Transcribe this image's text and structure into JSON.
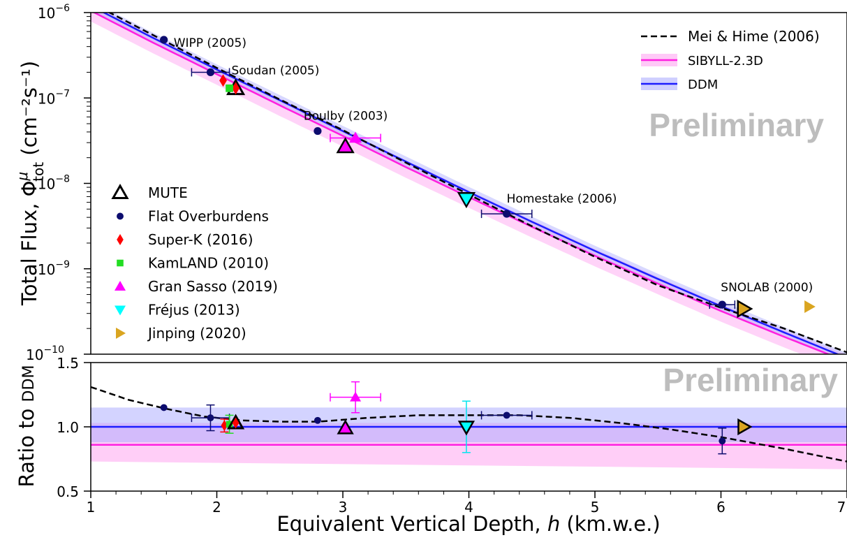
{
  "chart_data": [
    {
      "type": "scatter",
      "panel": "main",
      "ylabel": "Total Flux, Φ",
      "ylabel_sup": "μ",
      "ylabel_sub": "tot",
      "ylabel_units": "(cm⁻²s⁻¹)",
      "y_scale": "log",
      "ylim": [
        1e-10,
        1e-06
      ],
      "xlim": [
        1,
        7
      ],
      "y_ticks": [
        {
          "base": "10",
          "exp": "−6",
          "value": 1e-06
        },
        {
          "base": "10",
          "exp": "−7",
          "value": 1e-07
        },
        {
          "base": "10",
          "exp": "−8",
          "value": 1e-08
        },
        {
          "base": "10",
          "exp": "−9",
          "value": 1e-09
        },
        {
          "base": "10",
          "exp": "−10",
          "value": 1e-10
        }
      ],
      "watermark": "Preliminary",
      "legend_placement": "top-right",
      "lines": [
        {
          "name": "Mei & Hime (2006)",
          "color": "#000000",
          "style": "dashed",
          "x": [
            1.0,
            1.5,
            2.0,
            2.5,
            3.0,
            3.5,
            4.0,
            4.5,
            5.0,
            5.5,
            6.0,
            6.5,
            7.0
          ],
          "y": [
            1.3e-06,
            5.4e-07,
            2.25e-07,
            9.6e-08,
            4.2e-08,
            1.75e-08,
            7.4e-09,
            3.15e-09,
            1.38e-09,
            6.4e-10,
            3.5e-10,
            2e-10,
            1.05e-10
          ]
        },
        {
          "name": "SIBYLL-2.3D",
          "color": "#ff1fe0",
          "style": "solid",
          "band_color": "#ff9df0",
          "x": [
            1.0,
            1.5,
            2.0,
            2.5,
            3.0,
            3.5,
            4.0,
            4.5,
            5.0,
            5.5,
            6.0,
            6.5,
            7.0
          ],
          "y": [
            1.05e-06,
            4.4e-07,
            1.9e-07,
            8.2e-08,
            3.6e-08,
            1.55e-08,
            6.9e-09,
            3.1e-09,
            1.42e-09,
            6.7e-10,
            3.2e-10,
            1.6e-10,
            8.2e-11
          ],
          "band_factor_lo": 0.75,
          "band_factor_hi": 1.2
        },
        {
          "name": "DDM",
          "color": "#1d1dff",
          "style": "solid",
          "band_color": "#a8a8ff",
          "x": [
            1.0,
            1.5,
            2.0,
            2.5,
            3.0,
            3.5,
            4.0,
            4.5,
            5.0,
            5.5,
            6.0,
            6.5,
            7.0
          ],
          "y": [
            1.2e-06,
            5e-07,
            2.15e-07,
            9.4e-08,
            4.1e-08,
            1.8e-08,
            7.9e-09,
            3.55e-09,
            1.62e-09,
            7.6e-10,
            3.65e-10,
            1.8e-10,
            9e-11
          ],
          "band_factor_lo": 0.88,
          "band_factor_hi": 1.15
        }
      ],
      "points": [
        {
          "label": "WIPP (2005)",
          "x": 1.58,
          "y": 4.8e-07,
          "marker": "circle",
          "color": "#0c0c6e",
          "group": "Flat Overburdens"
        },
        {
          "label": "Soudan (2005)",
          "x": 1.95,
          "y": 2e-07,
          "xerr": 0.15,
          "marker": "circle",
          "color": "#0c0c6e",
          "group": "Flat Overburdens"
        },
        {
          "label": "Boulby (2003)",
          "x": 2.8,
          "y": 4.1e-08,
          "marker": "circle",
          "color": "#0c0c6e",
          "group": "Flat Overburdens"
        },
        {
          "label": "Homestake (2006)",
          "x": 4.3,
          "y": 4.4e-09,
          "xerr": 0.2,
          "marker": "circle",
          "color": "#0c0c6e",
          "group": "Flat Overburdens"
        },
        {
          "label": "SNOLAB (2000)",
          "x": 6.01,
          "y": 3.8e-10,
          "xerr": 0.1,
          "marker": "circle",
          "color": "#0c0c6e",
          "group": "Flat Overburdens"
        },
        {
          "label": "",
          "x": 2.15,
          "y": 1.3e-07,
          "marker": "triangle-up-open",
          "color": "#000000",
          "group": "MUTE"
        },
        {
          "label": "",
          "x": 3.02,
          "y": 2.7e-08,
          "marker": "triangle-up",
          "color": "#ff00ff",
          "edge": "#000000",
          "group": "MUTE"
        },
        {
          "label": "",
          "x": 3.98,
          "y": 6.6e-09,
          "marker": "triangle-down",
          "color": "#00ffff",
          "edge": "#000000",
          "group": "MUTE"
        },
        {
          "label": "",
          "x": 6.18,
          "y": 3.4e-10,
          "marker": "triangle-right",
          "color": "#daa520",
          "edge": "#000000",
          "group": "MUTE"
        },
        {
          "label": "",
          "x": 2.05,
          "y": 1.6e-07,
          "marker": "diamond",
          "color": "#ff0000",
          "group": "Super-K (2016)"
        },
        {
          "label": "",
          "x": 2.15,
          "y": 1.3e-07,
          "marker": "diamond",
          "color": "#ff0000",
          "group": "Super-K (2016)"
        },
        {
          "label": "",
          "x": 2.1,
          "y": 1.3e-07,
          "marker": "square",
          "color": "#22dd22",
          "group": "KamLAND (2010)"
        },
        {
          "label": "",
          "x": 3.1,
          "y": 3.4e-08,
          "xerr": 0.2,
          "yerr": 8e-10,
          "marker": "triangle-up",
          "color": "#ff00ff",
          "group": "Gran Sasso (2019)"
        },
        {
          "label": "",
          "x": 3.98,
          "y": 6.6e-09,
          "marker": "triangle-down",
          "color": "#00ffff",
          "group": "Fréjus (2013)"
        },
        {
          "label": "",
          "x": 6.7,
          "y": 3.6e-10,
          "marker": "triangle-right",
          "color": "#daa520",
          "group": "Jinping (2020)"
        }
      ],
      "legend": [
        {
          "label": "MUTE",
          "marker": "triangle-up-open",
          "color": "#000000"
        },
        {
          "label": "Flat Overburdens",
          "marker": "circle",
          "color": "#0c0c6e"
        },
        {
          "label": "Super-K (2016)",
          "marker": "diamond",
          "color": "#ff0000"
        },
        {
          "label": "KamLAND (2010)",
          "marker": "square",
          "color": "#22dd22"
        },
        {
          "label": "Gran Sasso (2019)",
          "marker": "triangle-up",
          "color": "#ff00ff"
        },
        {
          "label": "Fréjus (2013)",
          "marker": "triangle-down",
          "color": "#00ffff"
        },
        {
          "label": "Jinping (2020)",
          "marker": "triangle-right",
          "color": "#daa520"
        }
      ]
    },
    {
      "type": "scatter",
      "panel": "ratio",
      "ylabel": "Ratio to DDM",
      "xlabel": "Equivalent Vertical Depth, h (km.w.e.)",
      "xlim": [
        1,
        7
      ],
      "ylim": [
        0.5,
        1.5
      ],
      "x_ticks": [
        "1",
        "2",
        "3",
        "4",
        "5",
        "6",
        "7"
      ],
      "y_ticks": [
        "0.5",
        "1.0",
        "1.5"
      ],
      "watermark": "Preliminary",
      "lines": [
        {
          "name": "Mei & Hime (2006)",
          "color": "#000000",
          "style": "dashed",
          "x": [
            1.0,
            1.3,
            1.6,
            1.9,
            2.2,
            2.5,
            2.8,
            3.2,
            3.6,
            4.0,
            4.4,
            4.8,
            5.2,
            5.6,
            6.0,
            6.5,
            7.0
          ],
          "y": [
            1.31,
            1.21,
            1.14,
            1.08,
            1.05,
            1.04,
            1.04,
            1.07,
            1.09,
            1.09,
            1.09,
            1.07,
            1.03,
            0.98,
            0.92,
            0.83,
            0.73
          ]
        },
        {
          "name": "SIBYLL-2.3D",
          "color": "#ff1fe0",
          "style": "solid",
          "x": [
            1,
            7
          ],
          "y": [
            0.86,
            0.86
          ],
          "band_lo": [
            0.73,
            0.67
          ],
          "band_hi": [
            1.03,
            1.03
          ]
        },
        {
          "name": "DDM",
          "color": "#1d1dff",
          "style": "solid",
          "x": [
            1,
            7
          ],
          "y": [
            1.0,
            1.0
          ],
          "band_lo": [
            0.88,
            0.88
          ],
          "band_hi": [
            1.15,
            1.15
          ]
        }
      ],
      "points": [
        {
          "x": 1.58,
          "y": 1.15,
          "marker": "circle",
          "color": "#0c0c6e"
        },
        {
          "x": 1.95,
          "y": 1.07,
          "xerr": 0.15,
          "yerr": 0.1,
          "marker": "circle",
          "color": "#0c0c6e"
        },
        {
          "x": 2.8,
          "y": 1.05,
          "marker": "circle",
          "color": "#0c0c6e"
        },
        {
          "x": 4.3,
          "y": 1.09,
          "xerr": 0.2,
          "marker": "circle",
          "color": "#0c0c6e"
        },
        {
          "x": 6.01,
          "y": 0.89,
          "yerr": 0.1,
          "marker": "circle",
          "color": "#0c0c6e"
        },
        {
          "x": 2.06,
          "y": 1.01,
          "yerr": 0.05,
          "marker": "diamond",
          "color": "#ff0000"
        },
        {
          "x": 2.1,
          "y": 1.02,
          "yerr": 0.07,
          "marker": "square",
          "color": "#22dd22"
        },
        {
          "x": 2.15,
          "y": 1.03,
          "marker": "triangle-up-open",
          "color": "#000000"
        },
        {
          "x": 2.15,
          "y": 1.03,
          "marker": "diamond",
          "color": "#ff0000"
        },
        {
          "x": 3.02,
          "y": 0.99,
          "marker": "triangle-up",
          "color": "#ff00ff",
          "edge": "#000000"
        },
        {
          "x": 3.1,
          "y": 1.23,
          "xerr": 0.2,
          "yerr": 0.12,
          "marker": "triangle-up",
          "color": "#ff00ff"
        },
        {
          "x": 3.98,
          "y": 1.0,
          "yerr": 0.2,
          "marker": "triangle-down",
          "color": "#00ffff",
          "edge": "#000000"
        },
        {
          "x": 6.18,
          "y": 1.0,
          "marker": "triangle-right",
          "color": "#daa520",
          "edge": "#000000"
        }
      ]
    }
  ]
}
